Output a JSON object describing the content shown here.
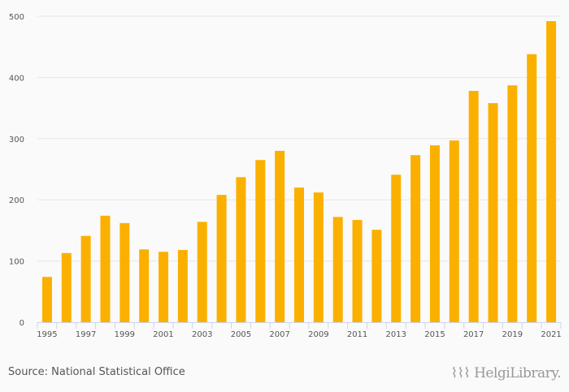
{
  "chart_data": {
    "type": "bar",
    "title": "",
    "xlabel": "",
    "ylabel": "",
    "ylim": [
      0,
      500
    ],
    "yticks": [
      0,
      100,
      200,
      300,
      400,
      500
    ],
    "grid": true,
    "color": "#fbb000",
    "categories": [
      "1995",
      "1996",
      "1997",
      "1998",
      "1999",
      "2000",
      "2001",
      "2002",
      "2003",
      "2004",
      "2005",
      "2006",
      "2007",
      "2008",
      "2009",
      "2010",
      "2011",
      "2012",
      "2013",
      "2014",
      "2015",
      "2016",
      "2017",
      "2018",
      "2019",
      "2020",
      "2021"
    ],
    "xtick_labels": [
      "1995",
      "1997",
      "1999",
      "2001",
      "2003",
      "2005",
      "2007",
      "2009",
      "2011",
      "2013",
      "2015",
      "2017",
      "2019",
      "2021"
    ],
    "values": [
      74,
      113,
      141,
      174,
      162,
      119,
      115,
      118,
      164,
      208,
      237,
      265,
      280,
      220,
      212,
      172,
      167,
      151,
      241,
      273,
      289,
      297,
      378,
      358,
      387,
      438,
      492
    ]
  },
  "footer": {
    "source": "Source: National Statistical Office",
    "logo_text": "HelgiLibrary."
  }
}
